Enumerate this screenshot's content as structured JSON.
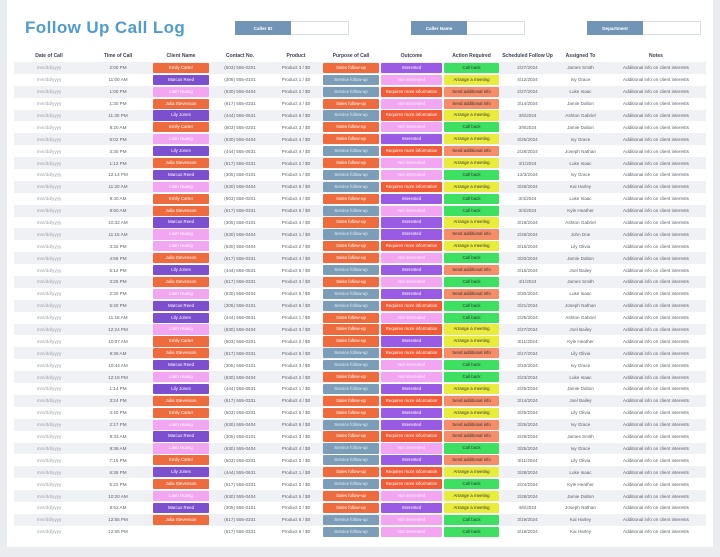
{
  "title": "Follow Up Call Log",
  "fields": [
    {
      "label": "Caller ID",
      "value": ""
    },
    {
      "label": "Caller Name",
      "value": ""
    },
    {
      "label": "Department",
      "value": ""
    }
  ],
  "colors": {
    "title": "#4f9ccd",
    "field_label_bg": "#7295b7",
    "row_alt_bg": "#f0f1f5",
    "header_text": "#3a4150",
    "date_text": "#9aa0a8"
  },
  "styles": {
    "client": {
      "Emily Carter": {
        "bg": "#ed6b3d",
        "fg": "#ffffff"
      },
      "Julia Stevenson": {
        "bg": "#ed6b3d",
        "fg": "#ffffff"
      },
      "Marcus Reed": {
        "bg": "#7c4fce",
        "fg": "#ffffff"
      },
      "Lily Jones": {
        "bg": "#7c4fce",
        "fg": "#ffffff"
      },
      "Liam Huang": {
        "bg": "#f2a6f2",
        "fg": "#ffffff"
      }
    },
    "purpose": {
      "Sales follow-up": {
        "bg": "#ed6b3d",
        "fg": "#ffffff"
      },
      "Service follow-up": {
        "bg": "#7b9db8",
        "fg": "#e9f1f7"
      }
    },
    "outcome": {
      "Interested": {
        "bg": "#9a5be4",
        "fg": "#ffffff"
      },
      "Not interested": {
        "bg": "#f2a6f2",
        "fg": "#fdeffd"
      },
      "Requires more information": {
        "bg": "#f25b35",
        "fg": "#ffffff"
      }
    },
    "action": {
      "Call back": {
        "bg": "#3ee061",
        "fg": "#333333"
      },
      "Arrange a meeting": {
        "bg": "#e9ec3d",
        "fg": "#333333"
      },
      "Send additional info": {
        "bg": "#f58d69",
        "fg": "#333333"
      }
    }
  },
  "table": {
    "columns": [
      "Date of Call",
      "Time of Call",
      "Client Name",
      "Contact No.",
      "Product",
      "Purpose of Call",
      "Outcome",
      "Action Required",
      "Scheduled Follow Up",
      "Assigned To",
      "Notes"
    ],
    "column_keys": [
      "date",
      "time",
      "client",
      "contact",
      "product",
      "purpose",
      "outcome",
      "action",
      "scheduled",
      "assigned",
      "notes"
    ],
    "rows": [
      [
        "mm/dd/yyyy",
        "2:00 PM",
        "Emily Carter",
        "(503) 555-0201",
        "Product 3 / $0",
        "Sales follow-up",
        "Interested",
        "Call back",
        "2/27/2024",
        "James Smith",
        "Additional info on client interests"
      ],
      [
        "mm/dd/yyyy",
        "11:00 AM",
        "Marcus Reed",
        "(305) 555-0101",
        "Product 1 / $0",
        "Service follow-up",
        "Not interested",
        "Arrange a meeting",
        "4/12/2024",
        "Ivy Grace",
        "Additional info on client interests"
      ],
      [
        "mm/dd/yyyy",
        "1:00 PM",
        "Liam Huang",
        "(630) 555-0404",
        "Product 2 / $0",
        "Service follow-up",
        "Requires more information",
        "Send additional info",
        "2/27/2024",
        "Luke Isaac",
        "Additional info on client interests"
      ],
      [
        "mm/dd/yyyy",
        "1:30 PM",
        "Julia Stevenson",
        "(617) 555-0331",
        "Product 4 / $0",
        "Sales follow-up",
        "Not interested",
        "Send additional info",
        "3/14/2024",
        "Jamie Dalton",
        "Additional info on client interests"
      ],
      [
        "mm/dd/yyyy",
        "11:30 PM",
        "Lily Jones",
        "(444) 555-0631",
        "Product 6 / $0",
        "Service follow-up",
        "Requires more information",
        "Arrange a meeting",
        "3/6/2024",
        "Ashton Gabriel",
        "Additional info on client interests"
      ],
      [
        "mm/dd/yyyy",
        "8:20 AM",
        "Emily Carter",
        "(503) 555-0201",
        "Product 3 / $0",
        "Sales follow-up",
        "Not interested",
        "Call back",
        "3/9/2024",
        "Jamie Dalton",
        "Additional info on client interests"
      ],
      [
        "mm/dd/yyyy",
        "6:02 PM",
        "Liam Huang",
        "(630) 555-0404",
        "Product 4 / $0",
        "Sales follow-up",
        "Interested",
        "Arrange a meeting",
        "3/25/2024",
        "Ivy Grace",
        "Additional info on client interests"
      ],
      [
        "mm/dd/yyyy",
        "3:30 PM",
        "Lily Jones",
        "(444) 555-0631",
        "Product 4 / $0",
        "Service follow-up",
        "Requires more information",
        "Send additional info",
        "2/28/2024",
        "Joseph Nathan",
        "Additional info on client interests"
      ],
      [
        "mm/dd/yyyy",
        "1:12 PM",
        "Julia Stevenson",
        "(617) 555-0331",
        "Product 2 / $0",
        "Sales follow-up",
        "Not interested",
        "Arrange a meeting",
        "3/1/2024",
        "Luke Isaac",
        "Additional info on client interests"
      ],
      [
        "mm/dd/yyyy",
        "12:14 PM",
        "Marcus Reed",
        "(305) 555-0101",
        "Product 1 / $0",
        "Service follow-up",
        "Not interested",
        "Call back",
        "12/3/2024",
        "Ivy Grace",
        "Additional info on client interests"
      ],
      [
        "mm/dd/yyyy",
        "11:20 AM",
        "Liam Huang",
        "(630) 555-0404",
        "Product 6 / $0",
        "Service follow-up",
        "Requires more information",
        "Arrange a meeting",
        "3/28/2024",
        "Kai Harley",
        "Additional info on client interests"
      ],
      [
        "mm/dd/yyyy",
        "9:40 AM",
        "Emily Carter",
        "(503) 555-0201",
        "Product 4 / $0",
        "Sales follow-up",
        "Interested",
        "Call back",
        "3/4/2024",
        "Luke Isaac",
        "Additional info on client interests"
      ],
      [
        "mm/dd/yyyy",
        "8:50 AM",
        "Julia Stevenson",
        "(617) 555-0331",
        "Product 5 / $0",
        "Service follow-up",
        "Not interested",
        "Call back",
        "3/4/2024",
        "Kyle Heather",
        "Additional info on client interests"
      ],
      [
        "mm/dd/yyyy",
        "10:32 AM",
        "Marcus Reed",
        "(305) 555-0101",
        "Product 4 / $0",
        "Sales follow-up",
        "Interested",
        "Arrange a meeting",
        "3/18/2024",
        "Ashton Gabriel",
        "Additional info on client interests"
      ],
      [
        "mm/dd/yyyy",
        "11:15 AM",
        "Liam Huang",
        "(630) 555-0404",
        "Product 1 / $0",
        "Service follow-up",
        "Interested",
        "Send additional info",
        "2/28/2024",
        "John Doe",
        "Additional info on client interests"
      ],
      [
        "mm/dd/yyyy",
        "3:32 PM",
        "Liam Huang",
        "(630) 555-0404",
        "Product 2 / $0",
        "Sales follow-up",
        "Requires more information",
        "Arrange a meeting",
        "3/15/2024",
        "Lily Olivia",
        "Additional info on client interests"
      ],
      [
        "mm/dd/yyyy",
        "4:56 PM",
        "Julia Stevenson",
        "(617) 555-0331",
        "Product 4 / $0",
        "Sales follow-up",
        "Not interested",
        "Call back",
        "3/20/2024",
        "Jamie Dalton",
        "Additional info on client interests"
      ],
      [
        "mm/dd/yyyy",
        "5:12 PM",
        "Lily Jones",
        "(444) 555-0631",
        "Product 6 / $0",
        "Service follow-up",
        "Interested",
        "Send additional info",
        "3/15/2024",
        "Joel Bailey",
        "Additional info on client interests"
      ],
      [
        "mm/dd/yyyy",
        "3:25 PM",
        "Julia Stevenson",
        "(617) 555-0331",
        "Product 3 / $0",
        "Sales follow-up",
        "Not interested",
        "Call back",
        "4/1/2024",
        "James Smith",
        "Additional info on client interests"
      ],
      [
        "mm/dd/yyyy",
        "2:30 PM",
        "Liam Huang",
        "(630) 555-0404",
        "Product 5 / $0",
        "Service follow-up",
        "Interested",
        "Send additional info",
        "3/30/2024",
        "Luke Isaac",
        "Additional info on client interests"
      ],
      [
        "mm/dd/yyyy",
        "5:40 PM",
        "Marcus Reed",
        "(305) 555-0101",
        "Product 6 / $0",
        "Service follow-up",
        "Requires more information",
        "Call back",
        "3/21/2024",
        "Joseph Nathan",
        "Additional info on client interests"
      ],
      [
        "mm/dd/yyyy",
        "11:18 AM",
        "Lily Jones",
        "(444) 555-0631",
        "Product 1 / $0",
        "Sales follow-up",
        "Not interested",
        "Call back",
        "2/25/2024",
        "Ashton Gabriel",
        "Additional info on client interests"
      ],
      [
        "mm/dd/yyyy",
        "12:24 PM",
        "Liam Huang",
        "(630) 555-0404",
        "Product 3 / $0",
        "Sales follow-up",
        "Requires more information",
        "Arrange a meeting",
        "2/27/2024",
        "Joel Bailey",
        "Additional info on client interests"
      ],
      [
        "mm/dd/yyyy",
        "10:07 AM",
        "Emily Carter",
        "(503) 555-0201",
        "Product 2 / $0",
        "Sales follow-up",
        "Interested",
        "Arrange a meeting",
        "3/11/2024",
        "Kyle Heather",
        "Additional info on client interests"
      ],
      [
        "mm/dd/yyyy",
        "9:36 AM",
        "Julia Stevenson",
        "(617) 555-0331",
        "Product 5 / $0",
        "Service follow-up",
        "Requires more information",
        "Send additional info",
        "3/17/2024",
        "Lily Olivia",
        "Additional info on client interests"
      ],
      [
        "mm/dd/yyyy",
        "10:44 AM",
        "Marcus Reed",
        "(305) 555-0101",
        "Product 3 / $0",
        "Service follow-up",
        "Not interested",
        "Call back",
        "3/10/2024",
        "Ivy Grace",
        "Additional info on client interests"
      ],
      [
        "mm/dd/yyyy",
        "12:18 PM",
        "Liam Huang",
        "(630) 555-0404",
        "Product 2 / $0",
        "Sales follow-up",
        "Not interested",
        "Call back",
        "2/23/2024",
        "Luke Isaac",
        "Additional info on client interests"
      ],
      [
        "mm/dd/yyyy",
        "1:14 PM",
        "Lily Jones",
        "(444) 555-0631",
        "Product 1 / $0",
        "Service follow-up",
        "Interested",
        "Arrange a meeting",
        "2/25/2024",
        "Jamie Dalton",
        "Additional info on client interests"
      ],
      [
        "mm/dd/yyyy",
        "3:24 PM",
        "Julia Stevenson",
        "(617) 555-0331",
        "Product 4 / $0",
        "Sales follow-up",
        "Requires more information",
        "Send additional info",
        "3/14/2024",
        "Joel Bailey",
        "Additional info on client interests"
      ],
      [
        "mm/dd/yyyy",
        "4:40 PM",
        "Emily Carter",
        "(503) 555-0201",
        "Product 5 / $0",
        "Sales follow-up",
        "Interested",
        "Arrange a meeting",
        "3/25/2024",
        "Lily Olivia",
        "Additional info on client interests"
      ],
      [
        "mm/dd/yyyy",
        "2:17 PM",
        "Liam Huang",
        "(630) 555-0404",
        "Product 6 / $0",
        "Service follow-up",
        "Interested",
        "Send additional info",
        "3/26/2024",
        "Ivy Grace",
        "Additional info on client interests"
      ],
      [
        "mm/dd/yyyy",
        "9:33 AM",
        "Marcus Reed",
        "(305) 555-0101",
        "Product 3 / $0",
        "Sales follow-up",
        "Requires more information",
        "Send additional info",
        "2/29/2024",
        "James Smith",
        "Additional info on client interests"
      ],
      [
        "mm/dd/yyyy",
        "9:36 AM",
        "Liam Huang",
        "(630) 555-0404",
        "Product 4 / $0",
        "Service follow-up",
        "Not interested",
        "Call back",
        "3/25/2024",
        "Ivy Grace",
        "Additional info on client interests"
      ],
      [
        "mm/dd/yyyy",
        "7:15 PM",
        "Emily Carter",
        "(503) 555-0201",
        "Product 2 / $0",
        "Service follow-up",
        "Interested",
        "Send additional info",
        "3/11/2024",
        "Lily Olivia",
        "Additional info on client interests"
      ],
      [
        "mm/dd/yyyy",
        "6:36 PM",
        "Lily Jones",
        "(444) 555-0631",
        "Product 1 / $0",
        "Sales follow-up",
        "Requires more information",
        "Arrange a meeting",
        "3/28/2024",
        "Luke Isaac",
        "Additional info on client interests"
      ],
      [
        "mm/dd/yyyy",
        "5:22 PM",
        "Julia Stevenson",
        "(617) 555-0331",
        "Product 2 / $0",
        "Service follow-up",
        "Requires more information",
        "Call back",
        "2/24/2024",
        "Kyle Heather",
        "Additional info on client interests"
      ],
      [
        "mm/dd/yyyy",
        "10:20 AM",
        "Liam Huang",
        "(630) 555-0404",
        "Product 5 / $0",
        "Sales follow-up",
        "Not interested",
        "Arrange a meeting",
        "2/28/2024",
        "Jamie Dalton",
        "Additional info on client interests"
      ],
      [
        "mm/dd/yyyy",
        "8:52 AM",
        "Marcus Reed",
        "(305) 555-0101",
        "Product 2 / $0",
        "Sales follow-up",
        "Interested",
        "Arrange a meeting",
        "4/6/2024",
        "Joseph Nathan",
        "Additional info on client interests"
      ],
      [
        "mm/dd/yyyy",
        "12:55 PM",
        "Julia Stevenson",
        "(617) 555-0331",
        "Product 6 / $0",
        "Service follow-up",
        "Not interested",
        "Call back",
        "3/19/2024",
        "Kai Harley",
        "Additional info on client interests"
      ],
      [
        "mm/dd/yyyy",
        "12:55 PM",
        "",
        "(617) 555-0331",
        "Product 6 / $0",
        "Service follow-up",
        "Not interested",
        "Call back",
        "3/19/2024",
        "Kai Harley",
        "Additional info on client interests"
      ]
    ]
  }
}
